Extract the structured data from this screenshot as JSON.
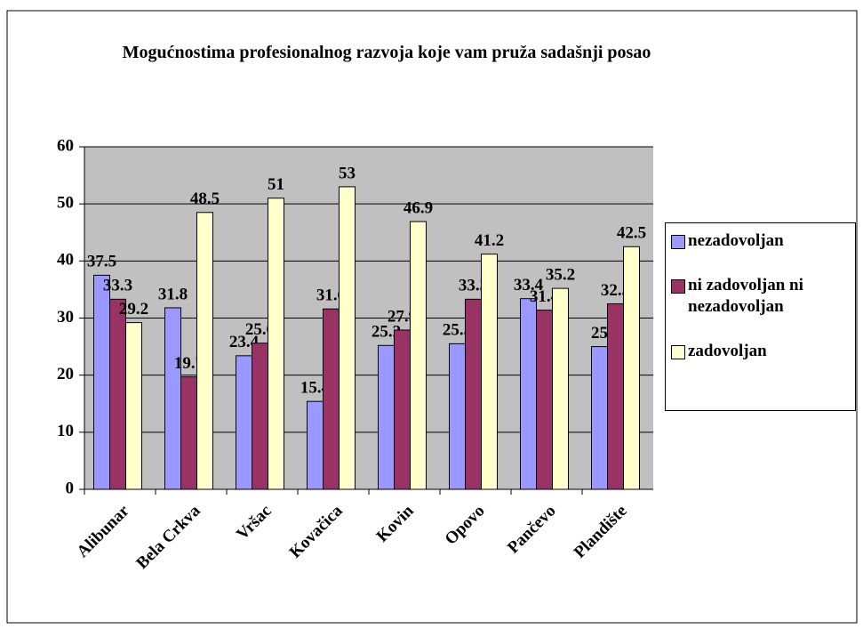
{
  "chart_data": {
    "type": "bar",
    "title": "Mogućnostima profesionalnog razvoja koje vam pruža sadašnji posao",
    "categories": [
      "Alibunar",
      "Bela Crkva",
      "Vršac",
      "Kovačica",
      "Kovin",
      "Opovo",
      "Pančevo",
      "Plandište"
    ],
    "series": [
      {
        "name": "nezadovoljan",
        "color": "#9999ff",
        "values": [
          37.5,
          31.8,
          23.4,
          15.4,
          25.2,
          25.5,
          33.4,
          25
        ]
      },
      {
        "name": "ni zadovoljan ni nezadovoljan",
        "color": "#993366",
        "values": [
          33.3,
          19.7,
          25.6,
          31.6,
          27.9,
          33.3,
          31.4,
          32.5
        ]
      },
      {
        "name": "zadovoljan",
        "color": "#ffffcc",
        "values": [
          29.2,
          48.5,
          51,
          53,
          46.9,
          41.2,
          35.2,
          42.5
        ]
      }
    ],
    "ylim": [
      0,
      60
    ],
    "yticks": [
      0,
      10,
      20,
      30,
      40,
      50,
      60
    ],
    "grid": true,
    "legend": "right"
  }
}
